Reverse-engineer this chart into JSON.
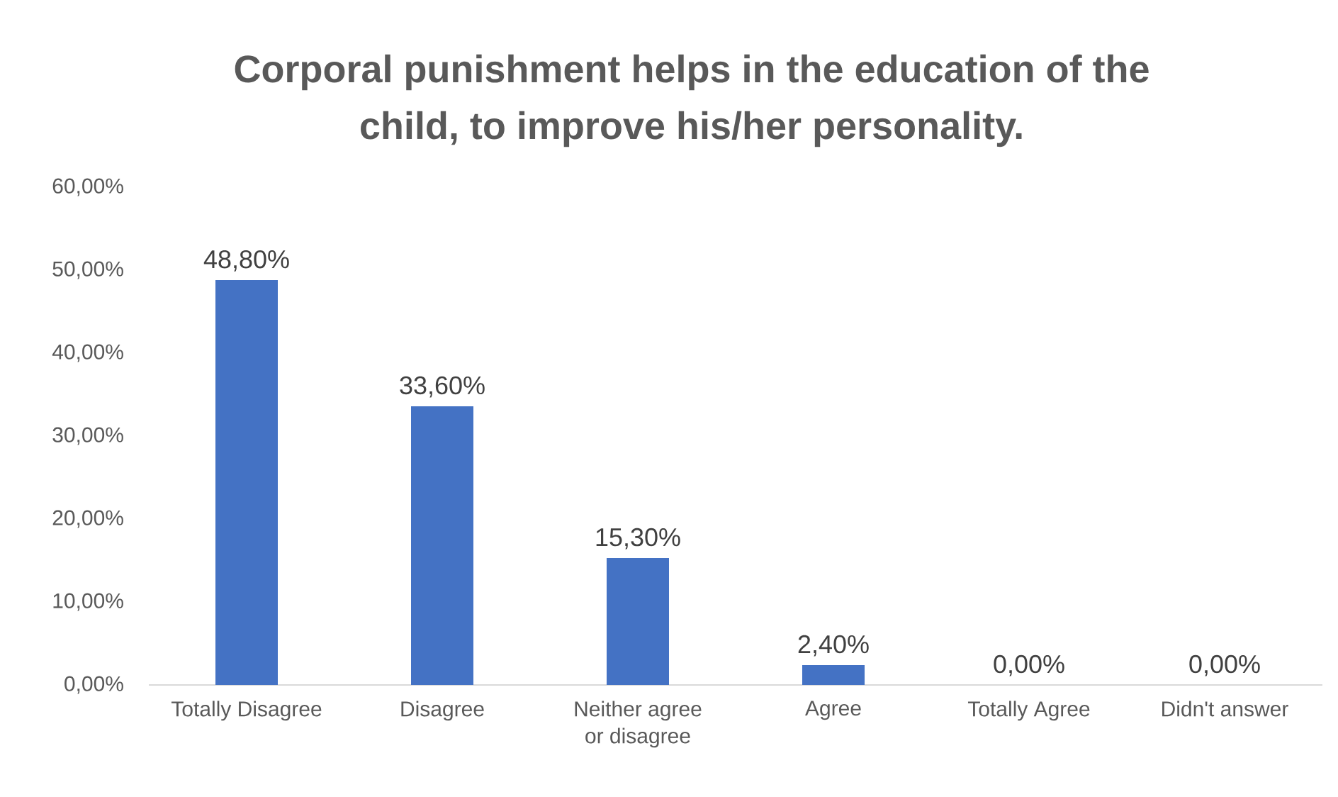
{
  "chart_data": {
    "type": "bar",
    "title": "Corporal punishment helps in the education of the child, to improve his/her personality.",
    "categories": [
      "Totally Disagree",
      "Disagree",
      "Neither agree or disagree",
      "Agree",
      "Totally Agree",
      "Didn't answer"
    ],
    "values": [
      48.8,
      33.6,
      15.3,
      2.4,
      0,
      0
    ],
    "value_labels": [
      "48,80%",
      "33,60%",
      "15,30%",
      "2,40%",
      "0,00%",
      "0,00%"
    ],
    "color": "#4472c4",
    "ylim": [
      0,
      60
    ],
    "yticks": [
      {
        "value": 0,
        "label": "0,00%"
      },
      {
        "value": 10,
        "label": "10,00%"
      },
      {
        "value": 20,
        "label": "20,00%"
      },
      {
        "value": 30,
        "label": "30,00%"
      },
      {
        "value": 40,
        "label": "40,00%"
      },
      {
        "value": 50,
        "label": "50,00%"
      },
      {
        "value": 60,
        "label": "60,00%"
      }
    ]
  }
}
